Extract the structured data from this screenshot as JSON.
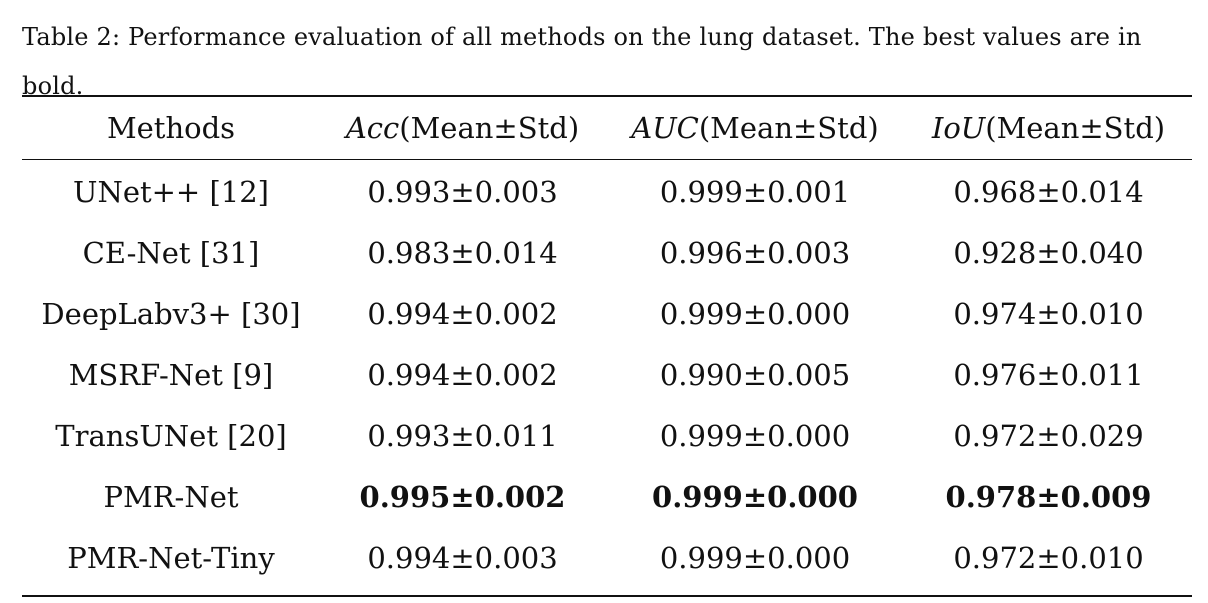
{
  "caption": "Table 2: Performance evaluation of all methods on the lung dataset. The best values are in bold.",
  "table": {
    "headers": [
      {
        "label": "Methods",
        "math": "",
        "rest": ""
      },
      {
        "label": "",
        "math": "Acc",
        "rest": "(Mean±Std)"
      },
      {
        "label": "",
        "math": "AUC",
        "rest": "(Mean±Std)"
      },
      {
        "label": "",
        "math": "IoU",
        "rest": "(Mean±Std)"
      }
    ],
    "rows": [
      {
        "method": "UNet++ [12]",
        "acc": "0.993±0.003",
        "auc": "0.999±0.001",
        "iou": "0.968±0.014",
        "bold": false
      },
      {
        "method": "CE-Net [31]",
        "acc": "0.983±0.014",
        "auc": "0.996±0.003",
        "iou": "0.928±0.040",
        "bold": false
      },
      {
        "method": "DeepLabv3+ [30]",
        "acc": "0.994±0.002",
        "auc": "0.999±0.000",
        "iou": "0.974±0.010",
        "bold": false
      },
      {
        "method": "MSRF-Net [9]",
        "acc": "0.994±0.002",
        "auc": "0.990±0.005",
        "iou": "0.976±0.011",
        "bold": false
      },
      {
        "method": "TransUNet [20]",
        "acc": "0.993±0.011",
        "auc": "0.999±0.000",
        "iou": "0.972±0.029",
        "bold": false
      },
      {
        "method": "PMR-Net",
        "acc": "0.995±0.002",
        "auc": "0.999±0.000",
        "iou": "0.978±0.009",
        "bold": true
      },
      {
        "method": "PMR-Net-Tiny",
        "acc": "0.994±0.003",
        "auc": "0.999±0.000",
        "iou": "0.972±0.010",
        "bold": false
      }
    ]
  }
}
